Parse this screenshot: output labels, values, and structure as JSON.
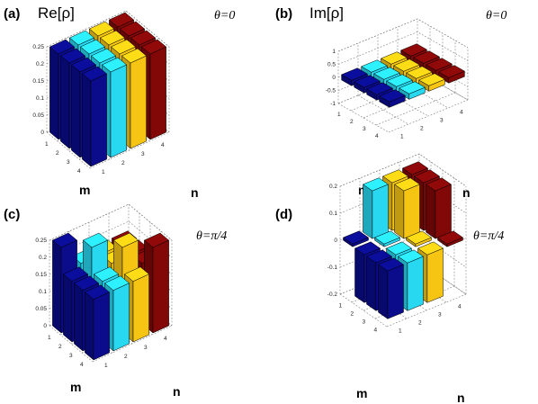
{
  "colors": {
    "n1": "#0a0c8c",
    "n2": "#28d7f0",
    "n3": "#f6c514",
    "n4": "#820808"
  },
  "panels": [
    {
      "letter": "(a)",
      "title": "Re[ρ]",
      "theta": "θ=0",
      "xlabel": "m",
      "ylabel": "n"
    },
    {
      "letter": "(b)",
      "title": "Im[ρ]",
      "theta": "θ=0",
      "xlabel": "m",
      "ylabel": "n"
    },
    {
      "letter": "(c)",
      "title": "",
      "theta": "θ=π/4",
      "xlabel": "m",
      "ylabel": "n"
    },
    {
      "letter": "(d)",
      "title": "",
      "theta": "θ=π/4",
      "xlabel": "m",
      "ylabel": "n"
    }
  ],
  "chart_data": [
    {
      "type": "bar3d",
      "title": "Re[ρ]",
      "annotation": "θ=0",
      "xlabel": "m",
      "ylabel": "n",
      "m_ticks": [
        "1",
        "2",
        "3",
        "4"
      ],
      "n_ticks": [
        "1",
        "2",
        "3",
        "4"
      ],
      "zlim": [
        0,
        0.25
      ],
      "z_ticks": [
        "0",
        "0.05",
        "0.1",
        "0.15",
        "0.2",
        "0.25"
      ],
      "values": [
        [
          0.25,
          0.25,
          0.25,
          0.25
        ],
        [
          0.25,
          0.25,
          0.25,
          0.25
        ],
        [
          0.25,
          0.25,
          0.25,
          0.25
        ],
        [
          0.25,
          0.25,
          0.25,
          0.25
        ]
      ]
    },
    {
      "type": "bar3d",
      "title": "Im[ρ]",
      "annotation": "θ=0",
      "xlabel": "m",
      "ylabel": "n",
      "m_ticks": [
        "1",
        "2",
        "3",
        "4"
      ],
      "n_ticks": [
        "1",
        "2",
        "3",
        "4"
      ],
      "zlim": [
        -1,
        1
      ],
      "z_ticks": [
        "-1",
        "-0.5",
        "0",
        "0.5",
        "1"
      ],
      "values": [
        [
          0,
          0,
          0,
          0
        ],
        [
          0,
          0,
          0,
          0
        ],
        [
          0,
          0,
          0,
          0
        ],
        [
          0,
          0,
          0,
          0
        ]
      ]
    },
    {
      "type": "bar3d",
      "title": "",
      "annotation": "θ=π/4",
      "xlabel": "m",
      "ylabel": "n",
      "m_ticks": [
        "1",
        "2",
        "3",
        "4"
      ],
      "n_ticks": [
        "1",
        "2",
        "3",
        "4"
      ],
      "zlim": [
        0,
        0.25
      ],
      "z_ticks": [
        "0",
        "0.05",
        "0.1",
        "0.15",
        "0.2",
        "0.25"
      ],
      "values": [
        [
          0.25,
          0.177,
          0.177,
          0.177
        ],
        [
          0.177,
          0.25,
          0.177,
          0.177
        ],
        [
          0.177,
          0.177,
          0.25,
          0.177
        ],
        [
          0.177,
          0.177,
          0.177,
          0.25
        ]
      ]
    },
    {
      "type": "bar3d",
      "title": "",
      "annotation": "θ=π/4",
      "xlabel": "m",
      "ylabel": "n",
      "m_ticks": [
        "1",
        "2",
        "3",
        "4"
      ],
      "n_ticks": [
        "1",
        "2",
        "3",
        "4"
      ],
      "zlim": [
        -0.2,
        0.2
      ],
      "z_ticks": [
        "-0.2",
        "-0.1",
        "0",
        "0.1",
        "0.2"
      ],
      "values": [
        [
          0,
          0.177,
          0.177,
          0.177
        ],
        [
          -0.177,
          0,
          0.177,
          0.177
        ],
        [
          -0.177,
          -0.177,
          0,
          0.177
        ],
        [
          -0.177,
          -0.177,
          -0.177,
          0
        ]
      ]
    }
  ]
}
